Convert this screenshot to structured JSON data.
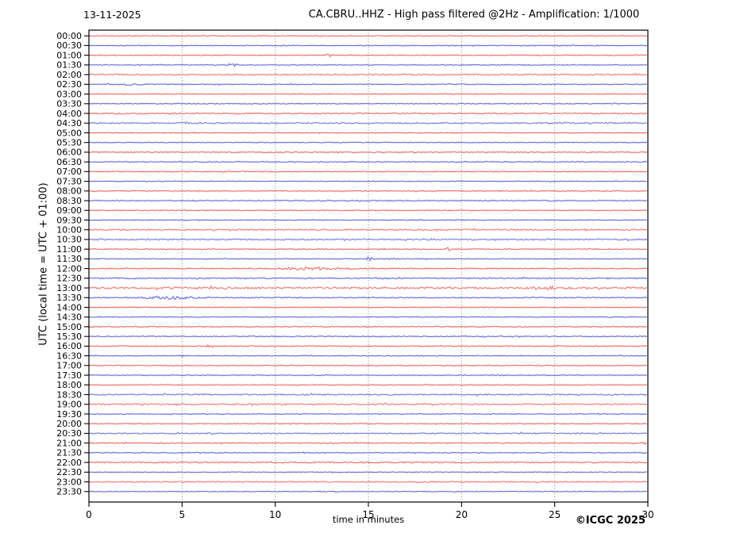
{
  "header": {
    "date": "13-11-2025",
    "title": "CA.CBRU..HHZ - High pass filtered @2Hz - Amplification: 1/1000"
  },
  "chart_data": {
    "type": "line",
    "subtype": "helicorder-seismogram-drum-record",
    "station": "CA.CBRU..HHZ",
    "filter": "High pass filtered @2Hz",
    "amplification": "1/1000",
    "date": "13-11-2025",
    "xlabel": "time in minutes",
    "ylabel": "UTC (local time = UTC + 01:00)",
    "xlim": [
      0,
      30
    ],
    "x_ticks": [
      0,
      5,
      10,
      15,
      20,
      25,
      30
    ],
    "grid": "vertical gray dotted gridlines at 5,10,15,20,25 minutes",
    "legend": "none",
    "row_interval_minutes": 30,
    "trace_colors": {
      "red": "#e6514c",
      "blue": "#5050d0"
    },
    "frame_color": "#000000",
    "grid_color": "#848484",
    "copyright": "©ICGC 2025",
    "rows": [
      {
        "time": "00:00",
        "color": "red",
        "amp": 0.7
      },
      {
        "time": "00:30",
        "color": "blue",
        "amp": 0.7
      },
      {
        "time": "01:00",
        "color": "red",
        "amp": 0.8
      },
      {
        "time": "01:30",
        "color": "blue",
        "amp": 0.7
      },
      {
        "time": "02:00",
        "color": "red",
        "amp": 1.2
      },
      {
        "time": "02:30",
        "color": "blue",
        "amp": 0.8
      },
      {
        "time": "03:00",
        "color": "red",
        "amp": 0.7
      },
      {
        "time": "03:30",
        "color": "blue",
        "amp": 0.8
      },
      {
        "time": "04:00",
        "color": "red",
        "amp": 0.9
      },
      {
        "time": "04:30",
        "color": "blue",
        "amp": 1.3
      },
      {
        "time": "05:00",
        "color": "red",
        "amp": 0.8
      },
      {
        "time": "05:30",
        "color": "blue",
        "amp": 0.7
      },
      {
        "time": "06:00",
        "color": "red",
        "amp": 1.0
      },
      {
        "time": "06:30",
        "color": "blue",
        "amp": 0.9
      },
      {
        "time": "07:00",
        "color": "red",
        "amp": 0.8
      },
      {
        "time": "07:30",
        "color": "blue",
        "amp": 0.7
      },
      {
        "time": "08:00",
        "color": "red",
        "amp": 0.9
      },
      {
        "time": "08:30",
        "color": "blue",
        "amp": 0.9
      },
      {
        "time": "09:00",
        "color": "red",
        "amp": 0.8
      },
      {
        "time": "09:30",
        "color": "blue",
        "amp": 0.7
      },
      {
        "time": "10:00",
        "color": "red",
        "amp": 1.4
      },
      {
        "time": "10:30",
        "color": "blue",
        "amp": 1.3
      },
      {
        "time": "11:00",
        "color": "red",
        "amp": 0.8
      },
      {
        "time": "11:30",
        "color": "blue",
        "amp": 0.8
      },
      {
        "time": "12:00",
        "color": "red",
        "amp": 1.0
      },
      {
        "time": "12:30",
        "color": "blue",
        "amp": 1.1
      },
      {
        "time": "13:00",
        "color": "red",
        "amp": 1.9
      },
      {
        "time": "13:30",
        "color": "blue",
        "amp": 1.0
      },
      {
        "time": "14:00",
        "color": "red",
        "amp": 0.7
      },
      {
        "time": "14:30",
        "color": "blue",
        "amp": 0.7
      },
      {
        "time": "15:00",
        "color": "red",
        "amp": 0.8
      },
      {
        "time": "15:30",
        "color": "blue",
        "amp": 0.9
      },
      {
        "time": "16:00",
        "color": "red",
        "amp": 1.0
      },
      {
        "time": "16:30",
        "color": "blue",
        "amp": 0.8
      },
      {
        "time": "17:00",
        "color": "red",
        "amp": 0.7
      },
      {
        "time": "17:30",
        "color": "blue",
        "amp": 0.7
      },
      {
        "time": "18:00",
        "color": "red",
        "amp": 0.8
      },
      {
        "time": "18:30",
        "color": "blue",
        "amp": 1.3
      },
      {
        "time": "19:00",
        "color": "red",
        "amp": 1.3
      },
      {
        "time": "19:30",
        "color": "blue",
        "amp": 0.7
      },
      {
        "time": "20:00",
        "color": "red",
        "amp": 0.8
      },
      {
        "time": "20:30",
        "color": "blue",
        "amp": 1.2
      },
      {
        "time": "21:00",
        "color": "red",
        "amp": 1.0
      },
      {
        "time": "21:30",
        "color": "blue",
        "amp": 0.8
      },
      {
        "time": "22:00",
        "color": "red",
        "amp": 1.1
      },
      {
        "time": "22:30",
        "color": "blue",
        "amp": 0.7
      },
      {
        "time": "23:00",
        "color": "red",
        "amp": 1.2
      },
      {
        "time": "23:30",
        "color": "blue",
        "amp": 0.7
      }
    ],
    "events": [
      {
        "time": "01:00",
        "minute": 12.9,
        "amplitude": 1.8,
        "width": 0.15,
        "note": "small red spike"
      },
      {
        "time": "01:30",
        "minute": 7.7,
        "amplitude": 3.2,
        "width": 0.18,
        "note": "blue blob event"
      },
      {
        "time": "02:30",
        "minute": 2.0,
        "amplitude": 1.1,
        "width": 0.8,
        "note": "mild blue noise burst"
      },
      {
        "time": "11:00",
        "minute": 19.3,
        "amplitude": 1.6,
        "width": 0.12,
        "note": "tiny red spike"
      },
      {
        "time": "11:30",
        "minute": 15.05,
        "amplitude": 2.6,
        "width": 0.12,
        "note": "blue spike at 15 min"
      },
      {
        "time": "12:00",
        "minute": 12.1,
        "amplitude": 1.4,
        "width": 1.5,
        "note": "red noise burst 10.7-13.6 min"
      },
      {
        "time": "13:00",
        "minute": 24.5,
        "amplitude": 1.2,
        "width": 0.9,
        "note": "denser noise in fuzzy row"
      },
      {
        "time": "13:30",
        "minute": 4.3,
        "amplitude": 1.5,
        "width": 1.2,
        "note": "blue noise burst 3-6 min"
      },
      {
        "time": "16:00",
        "minute": 6.5,
        "amplitude": 2.4,
        "width": 0.15,
        "note": "red spike"
      },
      {
        "time": "16:30",
        "minute": 5.0,
        "amplitude": 1.8,
        "width": 0.12,
        "note": "small blue blob at 5 min"
      },
      {
        "time": "19:00",
        "minute": 16.0,
        "amplitude": 1.8,
        "width": 0.12,
        "note": "small red spike"
      }
    ]
  }
}
